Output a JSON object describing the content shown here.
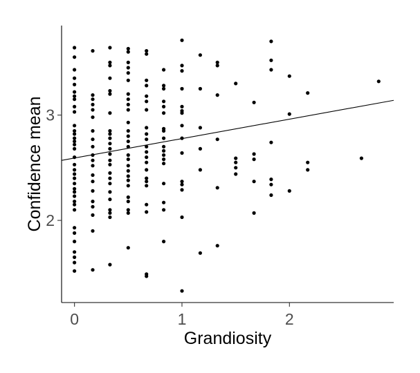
{
  "chart_data": {
    "type": "scatter",
    "title": "",
    "xlabel": "Grandiosity",
    "ylabel": "Confidence mean",
    "xlim": [
      -0.12,
      2.97
    ],
    "ylim": [
      1.22,
      3.85
    ],
    "xticks": [
      0,
      1,
      2
    ],
    "yticks": [
      2,
      3
    ],
    "grid": false,
    "legend": "none",
    "point_color": "#000000",
    "line_color": "#000000",
    "trend_line": {
      "x": [
        -0.12,
        2.97
      ],
      "y": [
        2.57,
        3.14
      ]
    },
    "points": [
      [
        0,
        3.64
      ],
      [
        0,
        3.55
      ],
      [
        0,
        3.43
      ],
      [
        0,
        3.35
      ],
      [
        0,
        3.29
      ],
      [
        0,
        3.22
      ],
      [
        0,
        3.18
      ],
      [
        0,
        3.15
      ],
      [
        0,
        3.08
      ],
      [
        0,
        3.03
      ],
      [
        0,
        2.9
      ],
      [
        0,
        2.85
      ],
      [
        0,
        2.82
      ],
      [
        0,
        2.78
      ],
      [
        0,
        2.75
      ],
      [
        0,
        2.72
      ],
      [
        0,
        2.68
      ],
      [
        0,
        2.6
      ],
      [
        0,
        2.53
      ],
      [
        0,
        2.48
      ],
      [
        0,
        2.44
      ],
      [
        0,
        2.4
      ],
      [
        0,
        2.35
      ],
      [
        0,
        2.3
      ],
      [
        0,
        2.27
      ],
      [
        0,
        2.23
      ],
      [
        0,
        2.18
      ],
      [
        0,
        2.15
      ],
      [
        0,
        2.1
      ],
      [
        0,
        1.93
      ],
      [
        0,
        1.88
      ],
      [
        0,
        1.8
      ],
      [
        0,
        1.7
      ],
      [
        0,
        1.65
      ],
      [
        0,
        1.6
      ],
      [
        0,
        1.52
      ],
      [
        0.17,
        3.61
      ],
      [
        0.17,
        3.19
      ],
      [
        0.17,
        3.15
      ],
      [
        0.17,
        3.1
      ],
      [
        0.17,
        3.05
      ],
      [
        0.17,
        2.98
      ],
      [
        0.17,
        2.85
      ],
      [
        0.17,
        2.77
      ],
      [
        0.17,
        2.7
      ],
      [
        0.17,
        2.62
      ],
      [
        0.17,
        2.57
      ],
      [
        0.17,
        2.52
      ],
      [
        0.17,
        2.43
      ],
      [
        0.17,
        2.37
      ],
      [
        0.17,
        2.28
      ],
      [
        0.17,
        2.18
      ],
      [
        0.17,
        2.13
      ],
      [
        0.17,
        2.05
      ],
      [
        0.17,
        1.9
      ],
      [
        0.17,
        1.53
      ],
      [
        0.33,
        3.64
      ],
      [
        0.33,
        3.5
      ],
      [
        0.33,
        3.47
      ],
      [
        0.33,
        3.35
      ],
      [
        0.33,
        3.23
      ],
      [
        0.33,
        3.2
      ],
      [
        0.33,
        3.02
      ],
      [
        0.33,
        2.85
      ],
      [
        0.33,
        2.82
      ],
      [
        0.33,
        2.78
      ],
      [
        0.33,
        2.73
      ],
      [
        0.33,
        2.68
      ],
      [
        0.33,
        2.63
      ],
      [
        0.33,
        2.57
      ],
      [
        0.33,
        2.53
      ],
      [
        0.33,
        2.45
      ],
      [
        0.33,
        2.4
      ],
      [
        0.33,
        2.35
      ],
      [
        0.33,
        2.27
      ],
      [
        0.33,
        2.2
      ],
      [
        0.33,
        2.1
      ],
      [
        0.33,
        2.07
      ],
      [
        0.33,
        2.03
      ],
      [
        0.33,
        1.58
      ],
      [
        0.5,
        3.63
      ],
      [
        0.5,
        3.6
      ],
      [
        0.5,
        3.5
      ],
      [
        0.5,
        3.45
      ],
      [
        0.5,
        3.4
      ],
      [
        0.5,
        3.33
      ],
      [
        0.5,
        3.2
      ],
      [
        0.5,
        3.15
      ],
      [
        0.5,
        3.1
      ],
      [
        0.5,
        3.05
      ],
      [
        0.5,
        2.93
      ],
      [
        0.5,
        2.85
      ],
      [
        0.5,
        2.8
      ],
      [
        0.5,
        2.75
      ],
      [
        0.5,
        2.7
      ],
      [
        0.5,
        2.62
      ],
      [
        0.5,
        2.58
      ],
      [
        0.5,
        2.52
      ],
      [
        0.5,
        2.47
      ],
      [
        0.5,
        2.42
      ],
      [
        0.5,
        2.38
      ],
      [
        0.5,
        2.33
      ],
      [
        0.5,
        2.22
      ],
      [
        0.5,
        2.18
      ],
      [
        0.5,
        2.1
      ],
      [
        0.5,
        2.07
      ],
      [
        0.5,
        1.74
      ],
      [
        0.67,
        3.61
      ],
      [
        0.67,
        3.58
      ],
      [
        0.67,
        3.33
      ],
      [
        0.67,
        3.28
      ],
      [
        0.67,
        3.18
      ],
      [
        0.67,
        3.13
      ],
      [
        0.67,
        3.05
      ],
      [
        0.67,
        2.88
      ],
      [
        0.67,
        2.82
      ],
      [
        0.67,
        2.77
      ],
      [
        0.67,
        2.7
      ],
      [
        0.67,
        2.65
      ],
      [
        0.67,
        2.6
      ],
      [
        0.67,
        2.55
      ],
      [
        0.67,
        2.48
      ],
      [
        0.67,
        2.4
      ],
      [
        0.67,
        2.37
      ],
      [
        0.67,
        2.33
      ],
      [
        0.67,
        2.15
      ],
      [
        0.67,
        2.08
      ],
      [
        0.67,
        1.49
      ],
      [
        0.67,
        1.47
      ],
      [
        0.83,
        3.43
      ],
      [
        0.83,
        3.28
      ],
      [
        0.83,
        3.25
      ],
      [
        0.83,
        3.13
      ],
      [
        0.83,
        3.08
      ],
      [
        0.83,
        3.02
      ],
      [
        0.83,
        2.87
      ],
      [
        0.83,
        2.85
      ],
      [
        0.83,
        2.78
      ],
      [
        0.83,
        2.7
      ],
      [
        0.83,
        2.66
      ],
      [
        0.83,
        2.62
      ],
      [
        0.83,
        2.58
      ],
      [
        0.83,
        2.54
      ],
      [
        0.83,
        2.35
      ],
      [
        0.83,
        2.17
      ],
      [
        0.83,
        2.1
      ],
      [
        0.83,
        1.8
      ],
      [
        1,
        3.71
      ],
      [
        1,
        3.47
      ],
      [
        1,
        3.42
      ],
      [
        1,
        3.25
      ],
      [
        1,
        3.08
      ],
      [
        1,
        3.04
      ],
      [
        1,
        3.02
      ],
      [
        1,
        2.9
      ],
      [
        1,
        2.78
      ],
      [
        1,
        2.64
      ],
      [
        1,
        2.37
      ],
      [
        1,
        2.34
      ],
      [
        1,
        2.29
      ],
      [
        1,
        2.03
      ],
      [
        1,
        1.33
      ],
      [
        1.17,
        3.57
      ],
      [
        1.17,
        3.25
      ],
      [
        1.17,
        2.88
      ],
      [
        1.17,
        2.68
      ],
      [
        1.17,
        2.48
      ],
      [
        1.17,
        1.69
      ],
      [
        1.33,
        3.5
      ],
      [
        1.33,
        3.47
      ],
      [
        1.33,
        3.19
      ],
      [
        1.33,
        2.77
      ],
      [
        1.33,
        2.31
      ],
      [
        1.33,
        1.76
      ],
      [
        1.5,
        3.3
      ],
      [
        1.5,
        2.59
      ],
      [
        1.5,
        2.55
      ],
      [
        1.5,
        2.5
      ],
      [
        1.5,
        2.44
      ],
      [
        1.67,
        3.12
      ],
      [
        1.67,
        2.63
      ],
      [
        1.67,
        2.58
      ],
      [
        1.67,
        2.37
      ],
      [
        1.67,
        2.07
      ],
      [
        1.83,
        3.7
      ],
      [
        1.83,
        3.52
      ],
      [
        1.83,
        3.43
      ],
      [
        1.83,
        2.74
      ],
      [
        1.83,
        2.39
      ],
      [
        1.83,
        2.34
      ],
      [
        1.83,
        2.24
      ],
      [
        2,
        3.37
      ],
      [
        2,
        3.01
      ],
      [
        2,
        2.28
      ],
      [
        2.17,
        3.21
      ],
      [
        2.17,
        2.55
      ],
      [
        2.17,
        2.48
      ],
      [
        2.67,
        2.59
      ],
      [
        2.83,
        3.32
      ]
    ]
  }
}
